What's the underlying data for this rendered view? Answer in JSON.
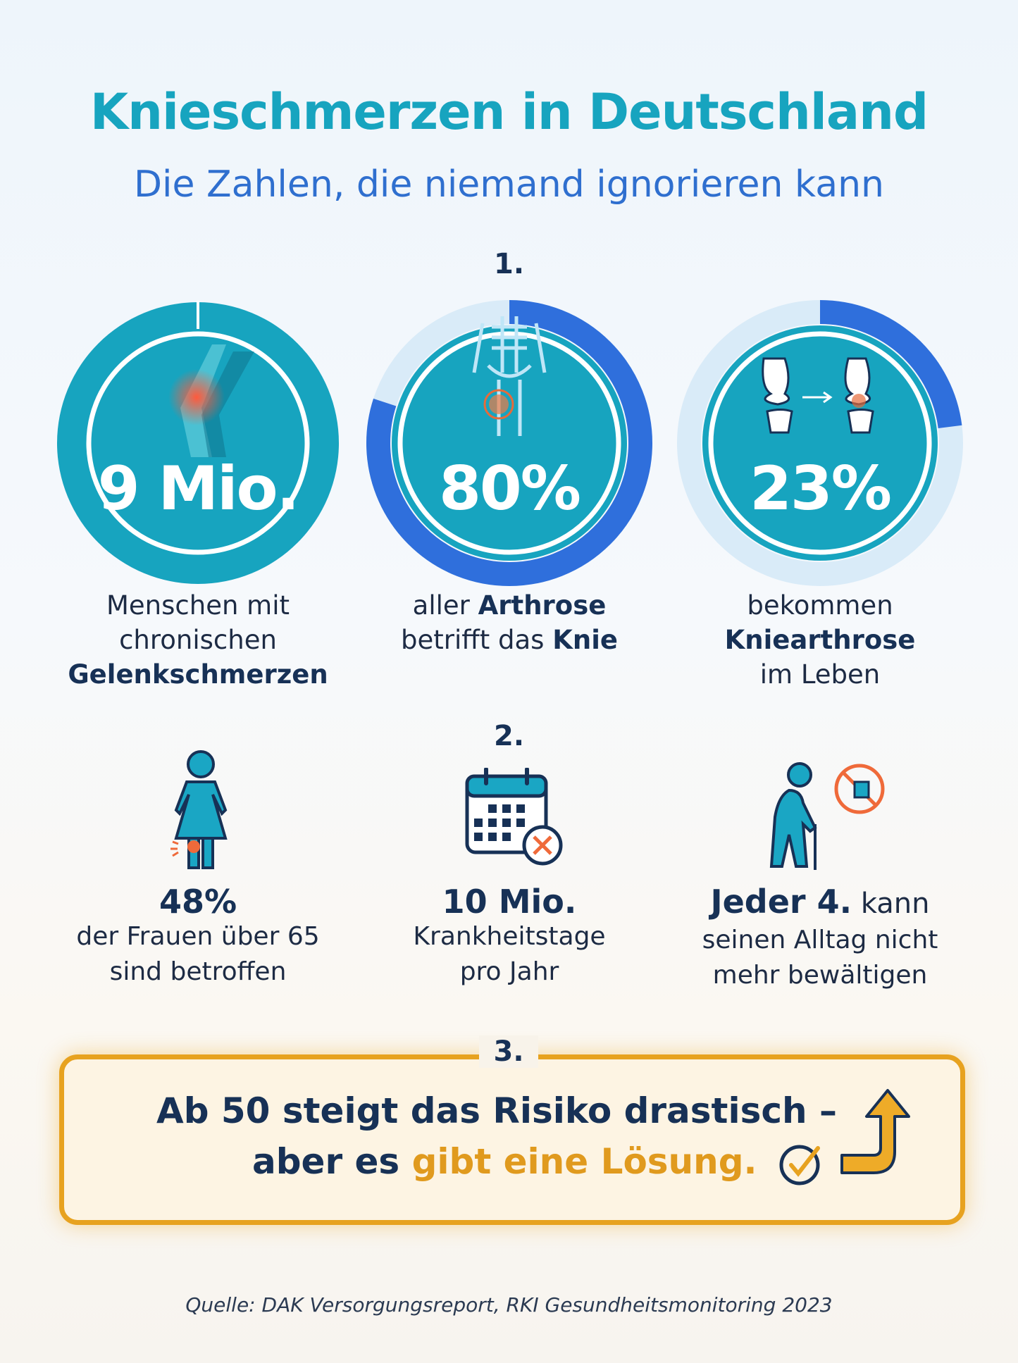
{
  "header": {
    "title": "Knieschmerzen in Deutschland",
    "subtitle": "Die Zahlen, die niemand ignorieren kann"
  },
  "section1": {
    "number": "1.",
    "items": [
      {
        "value": "9 Mio.",
        "progress": 100,
        "label_lines": [
          "Menschen mit",
          "chronischen"
        ],
        "label_bold": "Gelenkschmerzen",
        "icon": "knee-pain-icon"
      },
      {
        "value": "80%",
        "progress": 80,
        "label_pre": "aller ",
        "label_bold1": "Arthrose",
        "label_pre2": "betrifft das ",
        "label_bold2": "Knie",
        "icon": "skeleton-icon"
      },
      {
        "value": "23%",
        "progress": 23,
        "label_pre": "bekommen",
        "label_bold": "Kniearthrose",
        "label_post": "im Leben",
        "icon": "joint-degeneration-icon"
      }
    ]
  },
  "section2": {
    "number": "2.",
    "items": [
      {
        "value": "48%",
        "line1": "der Frauen über 65",
        "line2": "sind betroffen",
        "icon": "woman-knee-pain-icon"
      },
      {
        "value": "10 Mio.",
        "line1": "Krankheitstage",
        "line2": "pro Jahr",
        "icon": "calendar-cancel-icon"
      },
      {
        "value": "Jeder 4.",
        "value_suffix": " kann",
        "line1": "seinen Alltag nicht",
        "line2": "mehr bewältigen",
        "icon": "elderly-person-icon"
      }
    ]
  },
  "section3": {
    "number": "3.",
    "line1": "Ab 50 steigt das Risiko drastisch –",
    "line2_pre": "aber es ",
    "line2_highlight": "gibt eine Lösung."
  },
  "source": "Quelle: DAK Versorgungsreport, RKI Gesundheitsmonitoring 2023",
  "colors": {
    "teal": "#17a4bf",
    "blue": "#2f6fdc",
    "track": "#d9ebf8",
    "gold": "#e7a21f",
    "navy": "#173156"
  }
}
